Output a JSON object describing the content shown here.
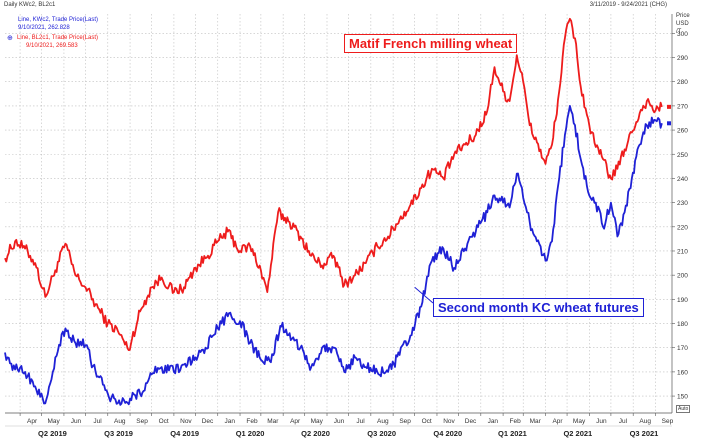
{
  "header": {
    "title": "Daily KWc2, BL2c1",
    "date_range": "3/11/2019 - 9/24/2021 (CHG)",
    "price_label": "Price",
    "currency": "USD",
    "unit_label": "/T"
  },
  "legend": {
    "kc_line": "Line, KWc2, Trade Price(Last)",
    "kc_value": "9/10/2021, 262.828",
    "matif_line": "Line, BL2c1, Trade Price(Last)",
    "matif_value": "9/10/2021, 269.583"
  },
  "annotations": {
    "matif": "Matif French milling wheat",
    "kc": "Second month KC wheat futures"
  },
  "corner_box": "Auto",
  "colors": {
    "matif": "#ee1c1c",
    "kc": "#1f21d6",
    "grid": "#bfbfbf",
    "axis": "#555555"
  },
  "chart_data": {
    "type": "line",
    "title": "Daily KWc2, BL2c1",
    "ylabel": "",
    "ylim": [
      143,
      308
    ],
    "yticks": [
      150,
      160,
      170,
      180,
      190,
      200,
      210,
      220,
      230,
      240,
      250,
      260,
      270,
      280,
      290,
      300
    ],
    "xlim": [
      "2019-03-11",
      "2021-09-24"
    ],
    "month_ticks": [
      {
        "label": "Apr",
        "date": "2019-04-01"
      },
      {
        "label": "May",
        "date": "2019-05-01"
      },
      {
        "label": "Jun",
        "date": "2019-06-01"
      },
      {
        "label": "Jul",
        "date": "2019-07-01"
      },
      {
        "label": "Aug",
        "date": "2019-08-01"
      },
      {
        "label": "Sep",
        "date": "2019-09-01"
      },
      {
        "label": "Oct",
        "date": "2019-10-01"
      },
      {
        "label": "Nov",
        "date": "2019-11-01"
      },
      {
        "label": "Dec",
        "date": "2019-12-01"
      },
      {
        "label": "Jan",
        "date": "2020-01-01"
      },
      {
        "label": "Feb",
        "date": "2020-02-01"
      },
      {
        "label": "Mar",
        "date": "2020-03-01"
      },
      {
        "label": "Apr",
        "date": "2020-04-01"
      },
      {
        "label": "May",
        "date": "2020-05-01"
      },
      {
        "label": "Jun",
        "date": "2020-06-01"
      },
      {
        "label": "Jul",
        "date": "2020-07-01"
      },
      {
        "label": "Aug",
        "date": "2020-08-01"
      },
      {
        "label": "Sep",
        "date": "2020-09-01"
      },
      {
        "label": "Oct",
        "date": "2020-10-01"
      },
      {
        "label": "Nov",
        "date": "2020-11-01"
      },
      {
        "label": "Dec",
        "date": "2020-12-01"
      },
      {
        "label": "Jan",
        "date": "2021-01-01"
      },
      {
        "label": "Feb",
        "date": "2021-02-01"
      },
      {
        "label": "Mar",
        "date": "2021-03-01"
      },
      {
        "label": "Apr",
        "date": "2021-04-01"
      },
      {
        "label": "May",
        "date": "2021-05-01"
      },
      {
        "label": "Jun",
        "date": "2021-06-01"
      },
      {
        "label": "Jul",
        "date": "2021-07-01"
      },
      {
        "label": "Aug",
        "date": "2021-08-01"
      },
      {
        "label": "Sep",
        "date": "2021-09-01"
      }
    ],
    "quarter_ticks": [
      {
        "label": "Q2 2019",
        "date": "2019-05-16"
      },
      {
        "label": "Q3 2019",
        "date": "2019-08-16"
      },
      {
        "label": "Q4 2019",
        "date": "2019-11-16"
      },
      {
        "label": "Q1 2020",
        "date": "2020-02-15"
      },
      {
        "label": "Q2 2020",
        "date": "2020-05-16"
      },
      {
        "label": "Q3 2020",
        "date": "2020-08-16"
      },
      {
        "label": "Q4 2020",
        "date": "2020-11-16"
      },
      {
        "label": "Q1 2021",
        "date": "2021-02-14"
      },
      {
        "label": "Q2 2021",
        "date": "2021-05-16"
      },
      {
        "label": "Q3 2021",
        "date": "2021-08-16"
      }
    ],
    "series": [
      {
        "name": "Matif French milling wheat",
        "color": "#ee1c1c",
        "points": [
          [
            "2019-03-11",
            207
          ],
          [
            "2019-03-25",
            214
          ],
          [
            "2019-04-08",
            211
          ],
          [
            "2019-04-22",
            205
          ],
          [
            "2019-05-06",
            191
          ],
          [
            "2019-05-20",
            202
          ],
          [
            "2019-06-03",
            213
          ],
          [
            "2019-06-17",
            200
          ],
          [
            "2019-07-01",
            195
          ],
          [
            "2019-07-15",
            188
          ],
          [
            "2019-08-01",
            180
          ],
          [
            "2019-08-15",
            177
          ],
          [
            "2019-08-30",
            169
          ],
          [
            "2019-09-15",
            185
          ],
          [
            "2019-10-01",
            195
          ],
          [
            "2019-10-15",
            199
          ],
          [
            "2019-11-01",
            193
          ],
          [
            "2019-11-15",
            195
          ],
          [
            "2019-12-01",
            203
          ],
          [
            "2019-12-15",
            207
          ],
          [
            "2020-01-01",
            214
          ],
          [
            "2020-01-15",
            218
          ],
          [
            "2020-02-01",
            210
          ],
          [
            "2020-02-15",
            212
          ],
          [
            "2020-03-01",
            202
          ],
          [
            "2020-03-10",
            193
          ],
          [
            "2020-03-25",
            226
          ],
          [
            "2020-04-10",
            222
          ],
          [
            "2020-04-25",
            216
          ],
          [
            "2020-05-10",
            208
          ],
          [
            "2020-05-25",
            204
          ],
          [
            "2020-06-10",
            208
          ],
          [
            "2020-06-25",
            196
          ],
          [
            "2020-07-10",
            200
          ],
          [
            "2020-07-25",
            205
          ],
          [
            "2020-08-10",
            212
          ],
          [
            "2020-08-25",
            216
          ],
          [
            "2020-09-10",
            223
          ],
          [
            "2020-09-25",
            229
          ],
          [
            "2020-10-10",
            236
          ],
          [
            "2020-10-25",
            244
          ],
          [
            "2020-11-10",
            240
          ],
          [
            "2020-11-25",
            250
          ],
          [
            "2020-12-10",
            254
          ],
          [
            "2020-12-25",
            258
          ],
          [
            "2021-01-10",
            268
          ],
          [
            "2021-01-20",
            286
          ],
          [
            "2021-02-01",
            276
          ],
          [
            "2021-02-10",
            272
          ],
          [
            "2021-02-20",
            291
          ],
          [
            "2021-03-01",
            280
          ],
          [
            "2021-03-10",
            262
          ],
          [
            "2021-03-20",
            255
          ],
          [
            "2021-04-01",
            246
          ],
          [
            "2021-04-10",
            254
          ],
          [
            "2021-04-20",
            276
          ],
          [
            "2021-04-28",
            298
          ],
          [
            "2021-05-05",
            306
          ],
          [
            "2021-05-12",
            298
          ],
          [
            "2021-05-20",
            278
          ],
          [
            "2021-06-01",
            262
          ],
          [
            "2021-06-10",
            253
          ],
          [
            "2021-06-20",
            248
          ],
          [
            "2021-07-01",
            240
          ],
          [
            "2021-07-10",
            244
          ],
          [
            "2021-07-20",
            252
          ],
          [
            "2021-07-30",
            259
          ],
          [
            "2021-08-10",
            267
          ],
          [
            "2021-08-20",
            272
          ],
          [
            "2021-09-01",
            268
          ],
          [
            "2021-09-10",
            269.6
          ]
        ]
      },
      {
        "name": "Second month KC wheat futures",
        "color": "#1f21d6",
        "points": [
          [
            "2019-03-11",
            168
          ],
          [
            "2019-03-25",
            161
          ],
          [
            "2019-04-08",
            160
          ],
          [
            "2019-04-22",
            154
          ],
          [
            "2019-05-06",
            147
          ],
          [
            "2019-05-20",
            166
          ],
          [
            "2019-06-03",
            178
          ],
          [
            "2019-06-17",
            172
          ],
          [
            "2019-07-01",
            171
          ],
          [
            "2019-07-15",
            160
          ],
          [
            "2019-08-01",
            151
          ],
          [
            "2019-08-15",
            147
          ],
          [
            "2019-09-01",
            149
          ],
          [
            "2019-09-15",
            151
          ],
          [
            "2019-10-01",
            159
          ],
          [
            "2019-10-15",
            162
          ],
          [
            "2019-11-01",
            160
          ],
          [
            "2019-11-15",
            163
          ],
          [
            "2019-12-01",
            166
          ],
          [
            "2019-12-15",
            170
          ],
          [
            "2020-01-01",
            178
          ],
          [
            "2020-01-15",
            183
          ],
          [
            "2020-02-01",
            181
          ],
          [
            "2020-02-15",
            172
          ],
          [
            "2020-03-01",
            165
          ],
          [
            "2020-03-15",
            164
          ],
          [
            "2020-03-28",
            179
          ],
          [
            "2020-04-10",
            176
          ],
          [
            "2020-04-25",
            170
          ],
          [
            "2020-05-10",
            162
          ],
          [
            "2020-05-25",
            170
          ],
          [
            "2020-06-10",
            170
          ],
          [
            "2020-06-25",
            160
          ],
          [
            "2020-07-10",
            166
          ],
          [
            "2020-07-25",
            162
          ],
          [
            "2020-08-10",
            160
          ],
          [
            "2020-08-25",
            160
          ],
          [
            "2020-09-10",
            167
          ],
          [
            "2020-09-25",
            175
          ],
          [
            "2020-10-10",
            187
          ],
          [
            "2020-10-25",
            206
          ],
          [
            "2020-11-10",
            211
          ],
          [
            "2020-11-25",
            203
          ],
          [
            "2020-12-10",
            211
          ],
          [
            "2020-12-25",
            218
          ],
          [
            "2021-01-10",
            226
          ],
          [
            "2021-01-20",
            233
          ],
          [
            "2021-02-01",
            230
          ],
          [
            "2021-02-10",
            228
          ],
          [
            "2021-02-20",
            242
          ],
          [
            "2021-03-01",
            232
          ],
          [
            "2021-03-10",
            222
          ],
          [
            "2021-03-20",
            214
          ],
          [
            "2021-04-01",
            206
          ],
          [
            "2021-04-10",
            214
          ],
          [
            "2021-04-20",
            240
          ],
          [
            "2021-04-28",
            258
          ],
          [
            "2021-05-05",
            270
          ],
          [
            "2021-05-12",
            262
          ],
          [
            "2021-05-20",
            248
          ],
          [
            "2021-06-01",
            233
          ],
          [
            "2021-06-10",
            230
          ],
          [
            "2021-06-20",
            220
          ],
          [
            "2021-07-01",
            230
          ],
          [
            "2021-07-10",
            216
          ],
          [
            "2021-07-20",
            226
          ],
          [
            "2021-07-30",
            240
          ],
          [
            "2021-08-10",
            254
          ],
          [
            "2021-08-20",
            262
          ],
          [
            "2021-09-01",
            264
          ],
          [
            "2021-09-10",
            262.8
          ]
        ]
      }
    ]
  }
}
